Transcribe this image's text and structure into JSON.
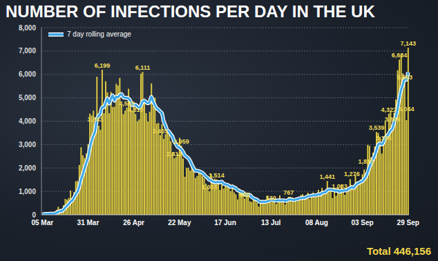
{
  "chart_data": {
    "type": "bar",
    "title": "NUMBER OF INFECTIONS PER DAY IN THE UK",
    "annotations": [
      "Total 446,156"
    ],
    "legend": "upper left",
    "grid": true,
    "data_labels": true,
    "ylim": [
      0,
      8000
    ],
    "yticks": [
      0,
      {
        "value": 1000,
        "label": "1,000"
      },
      {
        "value": 2000,
        "label": "2,000"
      },
      {
        "value": 3000,
        "label": "3,000"
      },
      {
        "value": 4000,
        "label": "4,000"
      },
      {
        "value": 5000,
        "label": "5,000"
      },
      {
        "value": 6000,
        "label": "6,000"
      },
      {
        "value": 7000,
        "label": "7,000"
      },
      {
        "value": 8000,
        "label": "8,000"
      }
    ],
    "categories": [
      "05 Mar",
      null,
      null,
      null,
      null,
      null,
      null,
      null,
      null,
      null,
      null,
      null,
      null,
      null,
      null,
      null,
      null,
      null,
      null,
      null,
      null,
      null,
      null,
      null,
      null,
      null,
      "31 Mar",
      null,
      null,
      null,
      null,
      null,
      null,
      null,
      null,
      null,
      null,
      null,
      null,
      null,
      null,
      null,
      null,
      null,
      null,
      null,
      null,
      null,
      null,
      null,
      null,
      null,
      "26 Apr",
      null,
      null,
      null,
      null,
      null,
      null,
      null,
      null,
      null,
      null,
      null,
      null,
      null,
      null,
      null,
      null,
      null,
      null,
      null,
      null,
      null,
      null,
      null,
      null,
      null,
      "22 May",
      null,
      null,
      null,
      null,
      null,
      null,
      null,
      null,
      null,
      null,
      null,
      null,
      null,
      null,
      null,
      null,
      null,
      null,
      null,
      null,
      null,
      null,
      null,
      null,
      null,
      "17 Jun",
      null,
      null,
      null,
      null,
      null,
      null,
      null,
      null,
      null,
      null,
      null,
      null,
      null,
      null,
      null,
      null,
      null,
      null,
      null,
      null,
      null,
      null,
      null,
      null,
      null,
      "13 Jul",
      null,
      null,
      null,
      null,
      null,
      null,
      null,
      null,
      null,
      null,
      null,
      null,
      null,
      null,
      null,
      null,
      null,
      null,
      null,
      null,
      null,
      null,
      null,
      null,
      null,
      "08 Aug",
      null,
      null,
      null,
      null,
      null,
      null,
      null,
      null,
      null,
      null,
      null,
      null,
      null,
      null,
      null,
      null,
      null,
      null,
      null,
      null,
      null,
      null,
      null,
      null,
      null,
      "03 Sep",
      null,
      null,
      null,
      null,
      null,
      null,
      null,
      null,
      null,
      null,
      null,
      null,
      null,
      null,
      null,
      null,
      null,
      null,
      null,
      null,
      null,
      null,
      null,
      null,
      null,
      "29 Sep"
    ],
    "series": [
      {
        "type": "bar",
        "color": "#dcc840",
        "values": [
          25,
          33,
          48,
          43,
          67,
          48,
          61,
          74,
          208,
          342,
          251,
          152,
          407,
          676,
          643,
          714,
          1035,
          665,
          967,
          1427,
          1452,
          2129,
          2885,
          2546,
          2433,
          2619,
          3009,
          4324,
          4244,
          4450,
          3883,
          5903,
          3802,
          3634,
          6199,
          4344,
          5706,
          5233,
          4342,
          5252,
          4603,
          4617,
          5599,
          5525,
          5850,
          4676,
          4301,
          4451,
          4583,
          5386,
          4913,
          4463,
          4806,
          4310,
          3996,
          4076,
          6032,
          6111,
          4806,
          4339,
          3985,
          4406,
          5614,
          4649,
          5004,
          3896,
          3923,
          3403,
          3877,
          3242,
          3446,
          3560,
          3451,
          3142,
          2684,
          2412,
          2472,
          2615,
          3287,
          2959,
          2405,
          1625,
          2004,
          2013,
          1887,
          2095,
          1936,
          1570,
          1653,
          1871,
          1805,
          1650,
          1557,
          1326,
          1205,
          1003,
          1741,
          1386,
          1541,
          1514,
          1425,
          1056,
          1279,
          1115,
          1218,
          1346,
          1295,
          1010,
          1221,
          958,
          874,
          653,
          1118,
          1006,
          890,
          689,
          815,
          829,
          576,
          544,
          630,
          624,
          516,
          352,
          581,
          630,
          512,
          642,
          820,
          650,
          530,
          598,
          538,
          463,
          687,
          827,
          650,
          580,
          445,
          560,
          767,
          769,
          743,
          553,
          685,
          581,
          763,
          846,
          880,
          744,
          743,
          938,
          670,
          892,
          950,
          871,
          758,
          1062,
          816,
          1148,
          1009,
          1062,
          1441,
          1012,
          1040,
          713,
          1089,
          812,
          1182,
          1033,
          1288,
          1041,
          853,
          1048,
          1184,
          1522,
          1276,
          1108,
          1715,
          1406,
          1295,
          1508,
          1735,
          1940,
          1813,
          2988,
          2948,
          2460,
          2659,
          2919,
          3539,
          3497,
          3330,
          2621,
          3105,
          3991,
          3395,
          4322,
          4422,
          3899,
          4368,
          4926,
          6178,
          6634,
          6874,
          6042,
          5693,
          4044,
          7143
        ],
        "value_labels": [
          null,
          null,
          null,
          null,
          null,
          null,
          null,
          null,
          null,
          null,
          null,
          null,
          null,
          null,
          null,
          null,
          null,
          null,
          null,
          null,
          null,
          null,
          null,
          null,
          null,
          null,
          null,
          null,
          null,
          null,
          "3,883",
          null,
          null,
          null,
          "6,199",
          null,
          null,
          null,
          null,
          null,
          null,
          null,
          null,
          null,
          null,
          null,
          null,
          null,
          "4,583",
          null,
          null,
          null,
          null,
          "4,310",
          null,
          null,
          null,
          "6,111",
          null,
          null,
          null,
          null,
          null,
          null,
          null,
          null,
          null,
          "3,403",
          null,
          null,
          null,
          null,
          null,
          null,
          null,
          "2,412",
          null,
          null,
          null,
          "2,959",
          null,
          null,
          null,
          null,
          null,
          null,
          null,
          null,
          null,
          null,
          null,
          null,
          null,
          null,
          null,
          "1,003",
          null,
          null,
          null,
          "1,514",
          null,
          null,
          null,
          null,
          null,
          null,
          null,
          null,
          null,
          null,
          null,
          null,
          null,
          null,
          null,
          "689",
          null,
          null,
          null,
          null,
          null,
          null,
          null,
          null,
          null,
          null,
          null,
          null,
          null,
          null,
          "530",
          null,
          null,
          null,
          null,
          null,
          null,
          null,
          null,
          null,
          "767",
          null,
          null,
          null,
          null,
          null,
          null,
          null,
          null,
          null,
          null,
          null,
          null,
          null,
          null,
          null,
          null,
          null,
          null,
          null,
          null,
          null,
          "1,441",
          null,
          null,
          null,
          null,
          null,
          null,
          "1,033",
          null,
          null,
          null,
          null,
          null,
          null,
          "1,276",
          null,
          null,
          null,
          null,
          null,
          null,
          null,
          "1,813",
          null,
          null,
          null,
          null,
          null,
          "3,539",
          null,
          null,
          null,
          "3,105",
          null,
          null,
          "4,322",
          null,
          "3,899",
          null,
          null,
          null,
          "6,634",
          null,
          null,
          "5,693",
          "4,044",
          "7,143"
        ]
      },
      {
        "name": "7 day rolling average",
        "type": "line",
        "color": "#3aa6e6",
        "values": [
          25,
          29,
          35,
          37,
          43,
          44,
          46,
          53,
          78,
          120,
          150,
          162,
          214,
          301,
          383,
          455,
          554,
          613,
          730,
          875,
          986,
          1198,
          1509,
          1724,
          1977,
          2213,
          2439,
          2849,
          3151,
          3375,
          3566,
          4062,
          4231,
          4320,
          4588,
          4602,
          4782,
          4974,
          4751,
          4959,
          5097,
          4871,
          5050,
          5024,
          5113,
          5160,
          5024,
          5003,
          4998,
          4967,
          4880,
          4682,
          4700,
          4702,
          4637,
          4564,
          4657,
          4828,
          4877,
          4810,
          4764,
          4822,
          5042,
          4844,
          4686,
          4556,
          4497,
          4414,
          4338,
          3999,
          3827,
          3621,
          3557,
          3446,
          3343,
          3134,
          3024,
          2905,
          2866,
          2796,
          2691,
          2539,
          2481,
          2415,
          2311,
          2141,
          1995,
          1876,
          1880,
          1861,
          1831,
          1797,
          1720,
          1633,
          1581,
          1488,
          1470,
          1410,
          1394,
          1388,
          1402,
          1381,
          1420,
          1331,
          1307,
          1279,
          1248,
          1188,
          1212,
          1166,
          1132,
          1051,
          1018,
          977,
          960,
          884,
          864,
          857,
          846,
          764,
          710,
          672,
          648,
          582,
          546,
          554,
          549,
          551,
          579,
          598,
          624,
          626,
          613,
          606,
          612,
          613,
          613,
          620,
          599,
          602,
          645,
          657,
          645,
          631,
          646,
          665,
          694,
          706,
          722,
          722,
          749,
          785,
          798,
          816,
          831,
          830,
          832,
          877,
          860,
          928,
          945,
          961,
          1042,
          1079,
          1075,
          1061,
          1052,
          1024,
          1041,
          983,
          1022,
          1023,
          1043,
          1037,
          1090,
          1138,
          1173,
          1147,
          1244,
          1323,
          1358,
          1404,
          1435,
          1530,
          1630,
          1812,
          2032,
          2199,
          2363,
          2532,
          2761,
          3001,
          3050,
          3004,
          3096,
          3286,
          3354,
          3466,
          3598,
          3679,
          3929,
          4189,
          4501,
          4964,
          5329,
          5560,
          5817,
          5770,
          6087
        ]
      }
    ]
  }
}
